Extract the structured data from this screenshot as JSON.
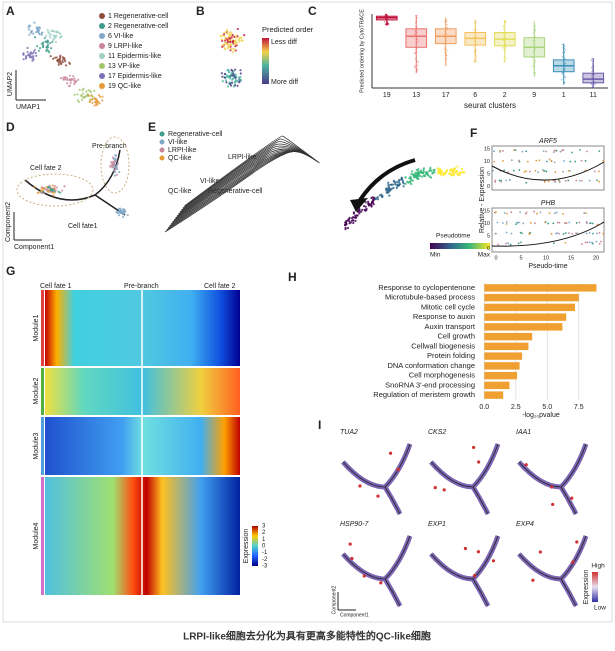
{
  "caption": "LRPI-like细胞去分化为具有更高多能特性的QC-like细胞",
  "panels": {
    "A": {
      "letter": "A",
      "x_axis": "UMAP1",
      "y_axis": "UMAP2",
      "legend": [
        {
          "label": "1  Regenerative-cell",
          "color": "#8e4b3a"
        },
        {
          "label": "2  Regenerative-cell",
          "color": "#3f9c8c"
        },
        {
          "label": "6  VI-like",
          "color": "#7fa8c9"
        },
        {
          "label": "9  LRPI-like",
          "color": "#c9879a"
        },
        {
          "label": "11 Epidermis-like",
          "color": "#9fd0c4"
        },
        {
          "label": "13 VP-like",
          "color": "#a2c76b"
        },
        {
          "label": "17 Epidermis-like",
          "color": "#7b6fb5"
        },
        {
          "label": "19 QC-like",
          "color": "#e59a3b"
        }
      ]
    },
    "B": {
      "letter": "B",
      "legend_title": "Predicted order",
      "high": "Less diff",
      "low": "More diff"
    },
    "C": {
      "letter": "C"
    },
    "D": {
      "letter": "D",
      "labels": [
        "Pre-branch",
        "Cell fate 2",
        "Cell fate1"
      ],
      "x_axis": "Component1",
      "y_axis": "Component2"
    },
    "E": {
      "letter": "E",
      "legend": [
        {
          "label": "Regenerative-cell",
          "color": "#3f9c8c"
        },
        {
          "label": "VI-like",
          "color": "#7fa8c9"
        },
        {
          "label": "LRPI-like",
          "color": "#c9879a"
        },
        {
          "label": "QC-like",
          "color": "#e59a3b"
        }
      ],
      "labels": [
        "LRPI-like",
        "VI-like",
        "QC-like",
        "Regenerative-cell"
      ],
      "colorbar_title": "Pseudotime",
      "min": "Min",
      "max": "Max"
    },
    "F": {
      "letter": "F",
      "genes": [
        "ARF5",
        "PHB"
      ],
      "y_axis": "Relative - Expression",
      "x_axis": "Pseudo-time",
      "yticks": [
        15,
        10,
        5,
        0
      ],
      "xticks": [
        0,
        5,
        10,
        15,
        20
      ]
    },
    "G": {
      "letter": "G",
      "top_labels": [
        "Cell fate 1",
        "Pre-branch",
        "Cell fate 2"
      ],
      "modules": [
        "Module1",
        "Module2",
        "Module3",
        "Module4"
      ],
      "colorbar_title": "Expression",
      "colorbar_ticks": [
        3,
        2,
        1,
        0,
        -1,
        -2,
        -3
      ]
    },
    "H": {
      "letter": "H"
    },
    "I": {
      "letter": "I",
      "genes": [
        "TUA2",
        "CKS2",
        "IAA1",
        "HSP90-7",
        "EXP1",
        "EXP4"
      ],
      "legend_title": "Expression",
      "high": "High",
      "low": "Low",
      "x_axis": "Component1",
      "y_axis": "Component2"
    }
  },
  "chart_data": [
    {
      "type": "box",
      "y_label": "Predicted ordering by CytoTRACE",
      "x_label": "seurat clusters",
      "categories": [
        "19",
        "13",
        "17",
        "6",
        "2",
        "9",
        "1",
        "11"
      ],
      "colors": [
        "#c0143c",
        "#e8736f",
        "#f09a5c",
        "#f3c05a",
        "#e3dc5a",
        "#a8d47a",
        "#3a8fb7",
        "#6a5aa8"
      ],
      "ylim": [
        0,
        1
      ],
      "boxes": [
        {
          "min": 0.85,
          "q1": 0.92,
          "median": 0.95,
          "q3": 0.97,
          "max": 1.0
        },
        {
          "min": 0.2,
          "q1": 0.55,
          "median": 0.7,
          "q3": 0.8,
          "max": 0.98
        },
        {
          "min": 0.3,
          "q1": 0.6,
          "median": 0.7,
          "q3": 0.8,
          "max": 0.95
        },
        {
          "min": 0.35,
          "q1": 0.58,
          "median": 0.67,
          "q3": 0.75,
          "max": 0.92
        },
        {
          "min": 0.35,
          "q1": 0.57,
          "median": 0.66,
          "q3": 0.75,
          "max": 0.92
        },
        {
          "min": 0.15,
          "q1": 0.42,
          "median": 0.55,
          "q3": 0.68,
          "max": 0.9
        },
        {
          "min": 0.05,
          "q1": 0.22,
          "median": 0.3,
          "q3": 0.38,
          "max": 0.6
        },
        {
          "min": 0.0,
          "q1": 0.07,
          "median": 0.12,
          "q3": 0.2,
          "max": 0.4
        }
      ]
    },
    {
      "type": "hbar",
      "x_label": "-log₁₀pvalue",
      "color": "#f0a030",
      "categories": [
        "Response to cyclopentenone",
        "Microtubule-based process",
        "Mitotic cell cycle",
        "Response to auxin",
        "Auxin transport",
        "Cell growth",
        "Cellwall biogenesis",
        "Protein folding",
        "DNA conformation change",
        "Cell morphogenesis",
        "SnoRNA 3'-end processing",
        "Regulation of meristem growth"
      ],
      "values": [
        8.9,
        7.5,
        7.2,
        6.5,
        6.2,
        3.8,
        3.5,
        3.0,
        2.8,
        2.6,
        2.0,
        1.5
      ],
      "xlim": [
        -0.5,
        9.5
      ],
      "xticks": [
        {
          "value": 0,
          "label": "0.0"
        },
        {
          "value": 2.5,
          "label": "2.5"
        },
        {
          "value": 5,
          "label": "5.0"
        },
        {
          "value": 7.5,
          "label": "7.5"
        }
      ],
      "grid": true
    }
  ]
}
